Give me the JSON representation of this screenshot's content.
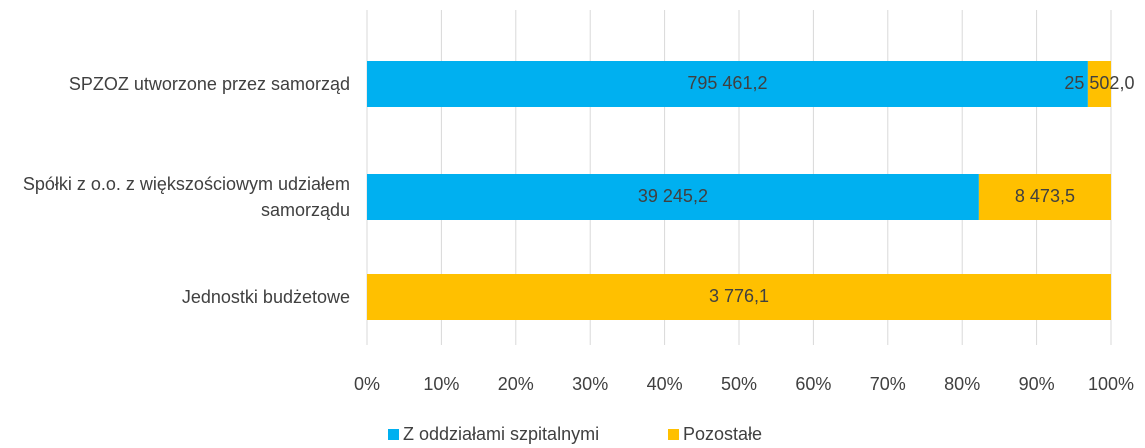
{
  "chart_data": {
    "type": "bar",
    "orientation": "horizontal",
    "stacking": "percent",
    "categories": [
      "SPZOZ utworzone przez samorząd",
      "Spółki z o.o. z większościowym udziałem samorządu",
      "Jednostki budżetowe"
    ],
    "series": [
      {
        "name": "Z oddziałami szpitalnymi",
        "color": "#00b0f0",
        "values": [
          795461.2,
          39245.2,
          null
        ],
        "value_labels": [
          "795 461,2",
          "39 245,2",
          null
        ]
      },
      {
        "name": "Pozostałe",
        "color": "#ffc000",
        "values": [
          25502.0,
          8473.5,
          3776.1
        ],
        "value_labels": [
          "25 502,0",
          "8 473,5",
          "3 776,1"
        ]
      }
    ],
    "xlim": [
      0,
      100
    ],
    "xticks": [
      {
        "value": 0,
        "label": "0%"
      },
      {
        "value": 10,
        "label": "10%"
      },
      {
        "value": 20,
        "label": "20%"
      },
      {
        "value": 30,
        "label": "30%"
      },
      {
        "value": 40,
        "label": "40%"
      },
      {
        "value": 50,
        "label": "50%"
      },
      {
        "value": 60,
        "label": "60%"
      },
      {
        "value": 70,
        "label": "70%"
      },
      {
        "value": 80,
        "label": "80%"
      },
      {
        "value": 90,
        "label": "90%"
      },
      {
        "value": 100,
        "label": "100%"
      }
    ],
    "grid": true,
    "legend": "bottom"
  }
}
